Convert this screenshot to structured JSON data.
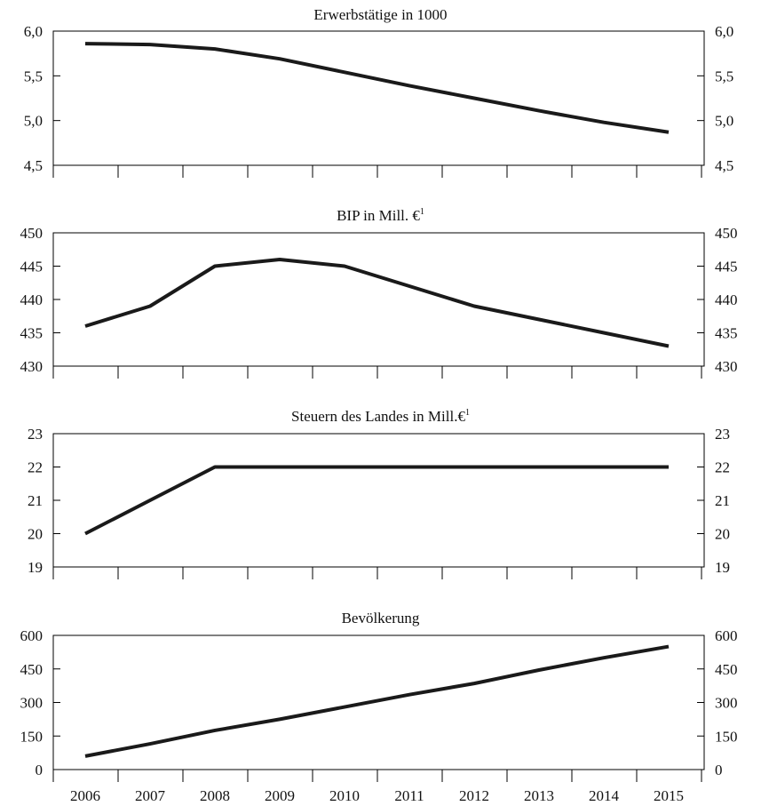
{
  "chart_data": [
    {
      "type": "line",
      "title": "Erwerbstätige in 1000",
      "title_footnote": "",
      "x": [
        2006,
        2007,
        2008,
        2009,
        2010,
        2011,
        2012,
        2013,
        2014,
        2015
      ],
      "series": [
        {
          "values": [
            5.86,
            5.85,
            5.8,
            5.69,
            5.54,
            5.39,
            5.25,
            5.11,
            4.98,
            4.87
          ]
        }
      ],
      "ylim": [
        4.5,
        6.0
      ],
      "yticks": [
        "4,5",
        "5,0",
        "5,5",
        "6,0"
      ],
      "ytick_values": [
        4.5,
        5.0,
        5.5,
        6.0
      ],
      "grid": false,
      "show_x_labels": false
    },
    {
      "type": "line",
      "title": "BIP in Mill. €",
      "title_footnote": "1",
      "x": [
        2006,
        2007,
        2008,
        2009,
        2010,
        2011,
        2012,
        2013,
        2014,
        2015
      ],
      "series": [
        {
          "values": [
            436,
            439,
            445,
            446,
            445,
            442,
            439,
            437,
            435,
            433
          ]
        }
      ],
      "ylim": [
        430,
        450
      ],
      "yticks": [
        "430",
        "435",
        "440",
        "445",
        "450"
      ],
      "ytick_values": [
        430,
        435,
        440,
        445,
        450
      ],
      "grid": false,
      "show_x_labels": false
    },
    {
      "type": "line",
      "title": "Steuern des Landes in Mill.€",
      "title_footnote": "1",
      "x": [
        2006,
        2007,
        2008,
        2009,
        2010,
        2011,
        2012,
        2013,
        2014,
        2015
      ],
      "series": [
        {
          "values": [
            20,
            21,
            22,
            22,
            22,
            22,
            22,
            22,
            22,
            22
          ]
        }
      ],
      "ylim": [
        19,
        23
      ],
      "yticks": [
        "19",
        "20",
        "21",
        "22",
        "23"
      ],
      "ytick_values": [
        19,
        20,
        21,
        22,
        23
      ],
      "grid": false,
      "show_x_labels": false
    },
    {
      "type": "line",
      "title": "Bevölkerung",
      "title_footnote": "",
      "x": [
        2006,
        2007,
        2008,
        2009,
        2010,
        2011,
        2012,
        2013,
        2014,
        2015
      ],
      "series": [
        {
          "values": [
            60,
            115,
            175,
            225,
            280,
            335,
            385,
            445,
            500,
            550
          ]
        }
      ],
      "ylim": [
        0,
        600
      ],
      "yticks": [
        "0",
        "150",
        "300",
        "450",
        "600"
      ],
      "ytick_values": [
        0,
        150,
        300,
        450,
        600
      ],
      "grid": false,
      "show_x_labels": true,
      "xtick_labels": [
        "2006",
        "2007",
        "2008",
        "2009",
        "2010",
        "2011",
        "2012",
        "2013",
        "2014",
        "2015"
      ]
    }
  ]
}
